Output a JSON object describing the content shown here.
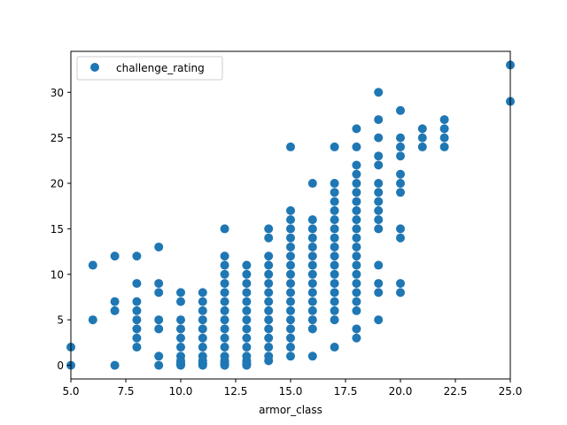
{
  "chart_data": {
    "type": "scatter",
    "xlabel": "armor_class",
    "ylabel": "",
    "xlim": [
      5,
      25
    ],
    "ylim": [
      -1.5,
      34.5
    ],
    "xticks": [
      5.0,
      7.5,
      10.0,
      12.5,
      15.0,
      17.5,
      20.0,
      22.5,
      25.0
    ],
    "xtick_labels": [
      "5.0",
      "7.5",
      "10.0",
      "12.5",
      "15.0",
      "17.5",
      "20.0",
      "22.5",
      "25.0"
    ],
    "yticks": [
      0,
      5,
      10,
      15,
      20,
      25,
      30
    ],
    "ytick_labels": [
      "0",
      "5",
      "10",
      "15",
      "20",
      "25",
      "30"
    ],
    "grid": false,
    "legend_position": "top-left",
    "marker_color": "#1f77b4",
    "series": [
      {
        "name": "challenge_rating",
        "points": [
          [
            5,
            0
          ],
          [
            5,
            2
          ],
          [
            6,
            5
          ],
          [
            6,
            11
          ],
          [
            7,
            0
          ],
          [
            7,
            6
          ],
          [
            7,
            7
          ],
          [
            7,
            12
          ],
          [
            8,
            2
          ],
          [
            8,
            3
          ],
          [
            8,
            4
          ],
          [
            8,
            5
          ],
          [
            8,
            6
          ],
          [
            8,
            7
          ],
          [
            8,
            9
          ],
          [
            8,
            12
          ],
          [
            9,
            0
          ],
          [
            9,
            1
          ],
          [
            9,
            4
          ],
          [
            9,
            5
          ],
          [
            9,
            8
          ],
          [
            9,
            9
          ],
          [
            9,
            13
          ],
          [
            10,
            0
          ],
          [
            10,
            0.125
          ],
          [
            10,
            0.25
          ],
          [
            10,
            0.5
          ],
          [
            10,
            1
          ],
          [
            10,
            2
          ],
          [
            10,
            3
          ],
          [
            10,
            4
          ],
          [
            10,
            5
          ],
          [
            10,
            7
          ],
          [
            10,
            8
          ],
          [
            11,
            0
          ],
          [
            11,
            0.125
          ],
          [
            11,
            0.25
          ],
          [
            11,
            0.5
          ],
          [
            11,
            1
          ],
          [
            11,
            2
          ],
          [
            11,
            3
          ],
          [
            11,
            4
          ],
          [
            11,
            5
          ],
          [
            11,
            6
          ],
          [
            11,
            7
          ],
          [
            11,
            8
          ],
          [
            12,
            0
          ],
          [
            12,
            0.125
          ],
          [
            12,
            0.25
          ],
          [
            12,
            0.5
          ],
          [
            12,
            1
          ],
          [
            12,
            2
          ],
          [
            12,
            3
          ],
          [
            12,
            4
          ],
          [
            12,
            5
          ],
          [
            12,
            6
          ],
          [
            12,
            7
          ],
          [
            12,
            8
          ],
          [
            12,
            9
          ],
          [
            12,
            10
          ],
          [
            12,
            11
          ],
          [
            12,
            12
          ],
          [
            12,
            15
          ],
          [
            13,
            0
          ],
          [
            13,
            0.125
          ],
          [
            13,
            0.25
          ],
          [
            13,
            0.5
          ],
          [
            13,
            1
          ],
          [
            13,
            2
          ],
          [
            13,
            3
          ],
          [
            13,
            4
          ],
          [
            13,
            5
          ],
          [
            13,
            6
          ],
          [
            13,
            7
          ],
          [
            13,
            8
          ],
          [
            13,
            9
          ],
          [
            13,
            10
          ],
          [
            13,
            11
          ],
          [
            14,
            0.5
          ],
          [
            14,
            1
          ],
          [
            14,
            2
          ],
          [
            14,
            3
          ],
          [
            14,
            4
          ],
          [
            14,
            5
          ],
          [
            14,
            6
          ],
          [
            14,
            7
          ],
          [
            14,
            8
          ],
          [
            14,
            9
          ],
          [
            14,
            10
          ],
          [
            14,
            11
          ],
          [
            14,
            12
          ],
          [
            14,
            14
          ],
          [
            14,
            15
          ],
          [
            15,
            1
          ],
          [
            15,
            2
          ],
          [
            15,
            3
          ],
          [
            15,
            4
          ],
          [
            15,
            5
          ],
          [
            15,
            6
          ],
          [
            15,
            7
          ],
          [
            15,
            8
          ],
          [
            15,
            9
          ],
          [
            15,
            10
          ],
          [
            15,
            11
          ],
          [
            15,
            12
          ],
          [
            15,
            13
          ],
          [
            15,
            14
          ],
          [
            15,
            15
          ],
          [
            15,
            16
          ],
          [
            15,
            17
          ],
          [
            15,
            24
          ],
          [
            16,
            1
          ],
          [
            16,
            4
          ],
          [
            16,
            5
          ],
          [
            16,
            6
          ],
          [
            16,
            7
          ],
          [
            16,
            8
          ],
          [
            16,
            9
          ],
          [
            16,
            10
          ],
          [
            16,
            11
          ],
          [
            16,
            12
          ],
          [
            16,
            13
          ],
          [
            16,
            14
          ],
          [
            16,
            15
          ],
          [
            16,
            16
          ],
          [
            16,
            20
          ],
          [
            17,
            2
          ],
          [
            17,
            5
          ],
          [
            17,
            6
          ],
          [
            17,
            7
          ],
          [
            17,
            8
          ],
          [
            17,
            9
          ],
          [
            17,
            10
          ],
          [
            17,
            11
          ],
          [
            17,
            12
          ],
          [
            17,
            13
          ],
          [
            17,
            14
          ],
          [
            17,
            15
          ],
          [
            17,
            16
          ],
          [
            17,
            17
          ],
          [
            17,
            18
          ],
          [
            17,
            19
          ],
          [
            17,
            20
          ],
          [
            17,
            24
          ],
          [
            18,
            3
          ],
          [
            18,
            4
          ],
          [
            18,
            6
          ],
          [
            18,
            7
          ],
          [
            18,
            8
          ],
          [
            18,
            9
          ],
          [
            18,
            10
          ],
          [
            18,
            11
          ],
          [
            18,
            12
          ],
          [
            18,
            13
          ],
          [
            18,
            14
          ],
          [
            18,
            15
          ],
          [
            18,
            16
          ],
          [
            18,
            17
          ],
          [
            18,
            18
          ],
          [
            18,
            19
          ],
          [
            18,
            20
          ],
          [
            18,
            21
          ],
          [
            18,
            22
          ],
          [
            18,
            24
          ],
          [
            18,
            26
          ],
          [
            19,
            5
          ],
          [
            19,
            8
          ],
          [
            19,
            9
          ],
          [
            19,
            11
          ],
          [
            19,
            15
          ],
          [
            19,
            16
          ],
          [
            19,
            17
          ],
          [
            19,
            18
          ],
          [
            19,
            19
          ],
          [
            19,
            20
          ],
          [
            19,
            22
          ],
          [
            19,
            23
          ],
          [
            19,
            25
          ],
          [
            19,
            27
          ],
          [
            19,
            30
          ],
          [
            20,
            8
          ],
          [
            20,
            9
          ],
          [
            20,
            14
          ],
          [
            20,
            15
          ],
          [
            20,
            19
          ],
          [
            20,
            20
          ],
          [
            20,
            21
          ],
          [
            20,
            23
          ],
          [
            20,
            24
          ],
          [
            20,
            25
          ],
          [
            20,
            28
          ],
          [
            21,
            24
          ],
          [
            21,
            25
          ],
          [
            21,
            26
          ],
          [
            22,
            24
          ],
          [
            22,
            25
          ],
          [
            22,
            26
          ],
          [
            22,
            27
          ],
          [
            25,
            29
          ],
          [
            25,
            33
          ]
        ]
      }
    ]
  }
}
